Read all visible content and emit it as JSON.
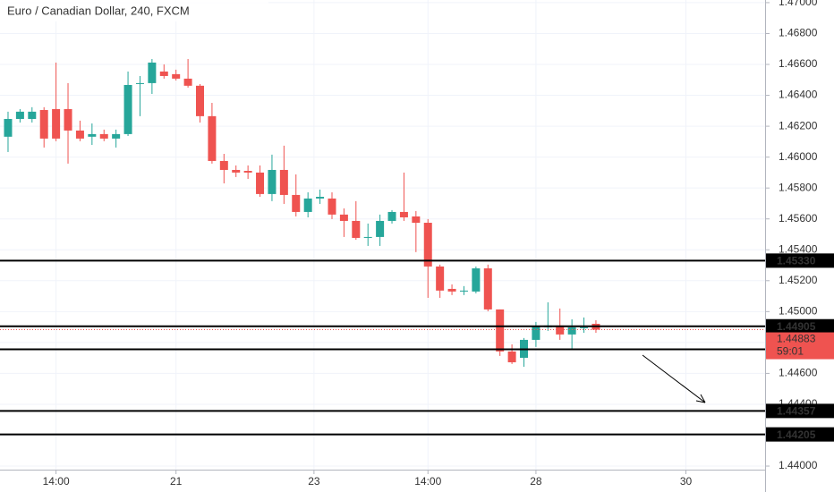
{
  "chart_data": {
    "type": "candlestick",
    "title": "Euro / Canadian Dollar, 240, FXCM",
    "x": [
      0,
      1,
      2,
      3,
      4,
      5,
      6,
      7,
      8,
      9,
      10,
      11,
      12,
      13,
      14,
      15,
      16,
      17,
      18,
      19,
      20,
      21,
      22,
      23,
      24,
      25,
      26,
      27,
      28,
      29,
      30,
      31,
      32,
      33,
      34,
      35,
      36,
      37,
      38,
      39,
      40,
      41,
      42,
      43,
      44,
      45,
      46,
      47,
      48,
      49
    ],
    "open": [
      1.46132,
      1.46247,
      1.46247,
      1.46305,
      1.46311,
      1.46311,
      1.46172,
      1.46132,
      1.46149,
      1.4612,
      1.46149,
      1.46473,
      1.46479,
      1.46554,
      1.46537,
      1.46508,
      1.46462,
      1.46265,
      1.45975,
      1.45917,
      1.45911,
      1.459,
      1.45761,
      1.45917,
      1.45755,
      1.45645,
      1.45732,
      1.45732,
      1.45628,
      1.45587,
      1.45477,
      1.45483,
      1.45587,
      1.45645,
      1.45616,
      1.45575,
      1.45292,
      1.45147,
      1.4513,
      1.4513,
      1.4528,
      1.45014,
      1.44742,
      1.44701,
      1.44817,
      1.44898,
      1.4491,
      1.44852,
      1.44892,
      1.44921
    ],
    "high": [
      1.46294,
      1.46311,
      1.46323,
      1.46323,
      1.46612,
      1.46479,
      1.46236,
      1.46218,
      1.46178,
      1.46178,
      1.46554,
      1.46525,
      1.46635,
      1.466,
      1.46566,
      1.46635,
      1.46473,
      1.46351,
      1.46021,
      1.45946,
      1.45946,
      1.45946,
      1.46016,
      1.46074,
      1.45888,
      1.45772,
      1.4579,
      1.45772,
      1.45668,
      1.45715,
      1.4557,
      1.45628,
      1.45657,
      1.459,
      1.45651,
      1.45599,
      1.45304,
      1.45176,
      1.45165,
      1.45292,
      1.45304,
      1.45014,
      1.44788,
      1.44829,
      1.44933,
      1.4506,
      1.4502,
      1.4495,
      1.44962,
      1.44944
    ],
    "low": [
      1.46033,
      1.46224,
      1.46224,
      1.46062,
      1.46103,
      1.45958,
      1.46103,
      1.46079,
      1.46103,
      1.46062,
      1.46137,
      1.46265,
      1.46409,
      1.46508,
      1.46496,
      1.4645,
      1.46224,
      1.45958,
      1.4583,
      1.45871,
      1.45859,
      1.45743,
      1.45715,
      1.45697,
      1.45616,
      1.4561,
      1.45697,
      1.45599,
      1.45483,
      1.45465,
      1.45425,
      1.45425,
      1.4557,
      1.45587,
      1.45385,
      1.45089,
      1.45089,
      1.45107,
      1.45107,
      1.45118,
      1.45002,
      1.44713,
      1.44661,
      1.44643,
      1.44771,
      1.44875,
      1.44817,
      1.44759,
      1.44863,
      1.44863
    ],
    "close": [
      1.46247,
      1.46294,
      1.46294,
      1.4612,
      1.4612,
      1.46172,
      1.4612,
      1.46149,
      1.4612,
      1.46149,
      1.46467,
      1.46479,
      1.46612,
      1.46525,
      1.46508,
      1.46462,
      1.46265,
      1.45975,
      1.45917,
      1.459,
      1.459,
      1.45761,
      1.45917,
      1.45755,
      1.45645,
      1.45732,
      1.45743,
      1.45628,
      1.45587,
      1.45477,
      1.45483,
      1.45587,
      1.45645,
      1.4561,
      1.45575,
      1.45292,
      1.45136,
      1.4513,
      1.45136,
      1.4528,
      1.45014,
      1.44742,
      1.44672,
      1.44817,
      1.44904,
      1.4491,
      1.44852,
      1.44898,
      1.44898,
      1.44883
    ],
    "up_color": "#26a69a",
    "down_color": "#ef5350",
    "xlim": [
      -0.67,
      63.1
    ],
    "xticks": [
      {
        "value": 4,
        "label": "14:00"
      },
      {
        "value": 14,
        "label": "21"
      },
      {
        "value": 25.5,
        "label": "23"
      },
      {
        "value": 35,
        "label": "14:00"
      },
      {
        "value": 44,
        "label": "28"
      },
      {
        "value": 56.5,
        "label": "30"
      }
    ],
    "ylim": [
      1.43977,
      1.47017
    ],
    "yticks": [
      {
        "value": 1.47,
        "label": "1.47000"
      },
      {
        "value": 1.468,
        "label": "1.46800"
      },
      {
        "value": 1.466,
        "label": "1.46600"
      },
      {
        "value": 1.464,
        "label": "1.46400"
      },
      {
        "value": 1.462,
        "label": "1.46200"
      },
      {
        "value": 1.46,
        "label": "1.46000"
      },
      {
        "value": 1.458,
        "label": "1.45800"
      },
      {
        "value": 1.456,
        "label": "1.45600"
      },
      {
        "value": 1.454,
        "label": "1.45400"
      },
      {
        "value": 1.452,
        "label": "1.45200"
      },
      {
        "value": 1.45,
        "label": "1.45000"
      },
      {
        "value": 1.448,
        "label": "1.44800"
      },
      {
        "value": 1.446,
        "label": "1.44600"
      },
      {
        "value": 1.444,
        "label": "1.44400"
      },
      {
        "value": 1.442,
        "label": "1.44200"
      },
      {
        "value": 1.44,
        "label": "1.44000"
      }
    ],
    "grid": true,
    "hlines": [
      {
        "value": 1.4533,
        "label": "1.45330"
      },
      {
        "value": 1.44905,
        "label": "1.44905"
      },
      {
        "value": 1.44756,
        "label": "1.44756"
      },
      {
        "value": 1.44357,
        "label": "1.44357"
      },
      {
        "value": 1.44205,
        "label": "1.44205"
      }
    ],
    "hline_color": "#000000",
    "current_price": {
      "value": 1.44883,
      "label": "1.44883"
    },
    "countdown": "59:01"
  }
}
